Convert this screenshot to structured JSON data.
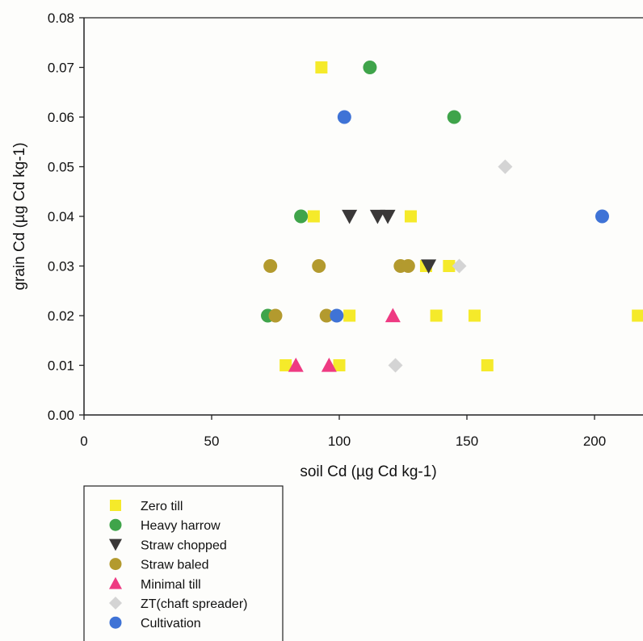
{
  "chart_data": {
    "type": "scatter",
    "title": "",
    "xlabel": "soil Cd (µg Cd kg-1)",
    "ylabel": "grain Cd (µg Cd kg-1)",
    "xlim": [
      0,
      220
    ],
    "ylim": [
      0,
      0.08
    ],
    "x_ticks": [
      0,
      50,
      100,
      150,
      200
    ],
    "x_tick_labels": [
      "0",
      "50",
      "100",
      "150",
      "200"
    ],
    "y_ticks": [
      0,
      0.01,
      0.02,
      0.03,
      0.04,
      0.05,
      0.06,
      0.07,
      0.08
    ],
    "y_tick_labels": [
      "0.00",
      "0.01",
      "0.02",
      "0.03",
      "0.04",
      "0.05",
      "0.06",
      "0.07",
      "0.08"
    ],
    "grid": false,
    "legend_position": "bottom-left",
    "series": [
      {
        "name": "Zero till",
        "marker": "square",
        "color": "#f5ea2a",
        "points": [
          [
            93,
            0.07
          ],
          [
            90,
            0.04
          ],
          [
            128,
            0.04
          ],
          [
            134,
            0.03
          ],
          [
            143,
            0.03
          ],
          [
            104,
            0.02
          ],
          [
            138,
            0.02
          ],
          [
            153,
            0.02
          ],
          [
            217,
            0.02
          ],
          [
            79,
            0.01
          ],
          [
            100,
            0.01
          ],
          [
            158,
            0.01
          ]
        ]
      },
      {
        "name": "Heavy harrow",
        "marker": "circle",
        "color": "#3fa44a",
        "points": [
          [
            112,
            0.07
          ],
          [
            145,
            0.06
          ],
          [
            85,
            0.04
          ],
          [
            72,
            0.02
          ]
        ]
      },
      {
        "name": "Straw chopped",
        "marker": "triangle-down",
        "color": "#3a3838",
        "points": [
          [
            104,
            0.04
          ],
          [
            115,
            0.04
          ],
          [
            119,
            0.04
          ],
          [
            135,
            0.03
          ]
        ]
      },
      {
        "name": "Straw baled",
        "marker": "circle",
        "color": "#b39a2e",
        "points": [
          [
            73,
            0.03
          ],
          [
            92,
            0.03
          ],
          [
            124,
            0.03
          ],
          [
            127,
            0.03
          ],
          [
            75,
            0.02
          ],
          [
            95,
            0.02
          ]
        ]
      },
      {
        "name": "Minimal till",
        "marker": "triangle-up",
        "color": "#ee3a82",
        "points": [
          [
            83,
            0.01
          ],
          [
            96,
            0.01
          ],
          [
            121,
            0.02
          ]
        ]
      },
      {
        "name": "ZT(chaft spreader)",
        "marker": "diamond",
        "color": "#d4d4d4",
        "points": [
          [
            165,
            0.05
          ],
          [
            147,
            0.03
          ],
          [
            122,
            0.01
          ]
        ]
      },
      {
        "name": "Cultivation",
        "marker": "circle",
        "color": "#3f73d6",
        "points": [
          [
            102,
            0.06
          ],
          [
            203,
            0.04
          ],
          [
            99,
            0.02
          ]
        ]
      }
    ]
  }
}
